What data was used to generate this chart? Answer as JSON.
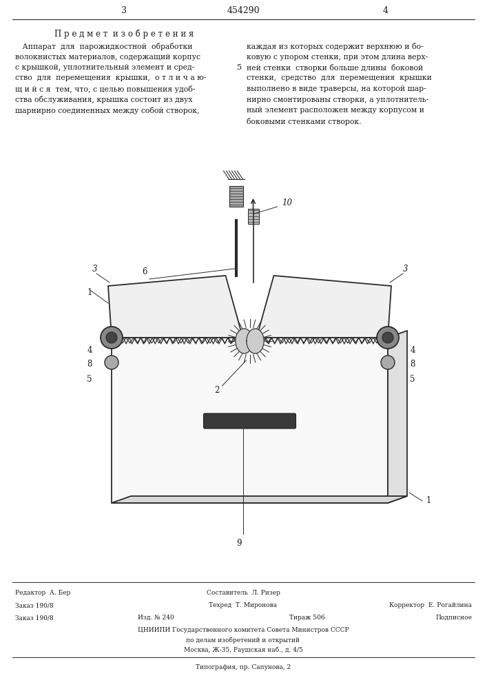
{
  "patent_number": "454290",
  "page_left": "3",
  "page_right": "4",
  "section_title": "П р е д м е т  и з о б р е т е н и я",
  "left_col_text": [
    "   Аппарат  для  парожидкостной  обработки",
    "волокнистых материалов, содержащий корпус",
    "с крышкой, уплотнительный элемент и сред-",
    "ство  для  перемещения  крышки,  о т л и ч а ю-",
    "щ и й с я  тем, что, с целью повышения удоб-",
    "ства обслуживания, крышка состоит из двух",
    "шарнирно соединенных между собой створок,"
  ],
  "right_col_text": [
    "каждая из которых содержит верхнюю и бо-",
    "ковую с упором стенки, при этом длина верх-",
    "ней стенки  створки больше длины  боковой",
    "стенки,  средство  для  перемещения  крышки",
    "выполнено в виде траверсы, на которой шар-",
    "нирно смонтированы створки, а уплотнитель-",
    "ный элемент расположен между корпусом и",
    "боковыми стенками створок."
  ],
  "col5_label": "5",
  "diagram_labels": {
    "1_left": "1",
    "1_right": "1",
    "2": "2",
    "3_left": "3",
    "3_right": "3",
    "4_left": "4",
    "4_right": "4",
    "5_left": "5",
    "5_right": "5",
    "6": "6",
    "8_left": "8",
    "8_right": "8",
    "9": "9",
    "10": "10"
  },
  "footer_editor": "Редактор  А. Бер",
  "footer_composer": "Составитель  Л. Ризер",
  "footer_order": "Заказ 190/8",
  "footer_tech": "Техред  Т. Миронова",
  "footer_corrector": "Корректор  Е. Рогайлина",
  "footer_izd": "Изд. № 240",
  "footer_tirazh": "Тираж 506",
  "footer_podpisnoe": "Подписное",
  "footer_org1": "ЦНИИПИ Государственного комитета Совета Министров СССР",
  "footer_org2": "по делам изобретений и открытий",
  "footer_org3": "Москва, Ж-35, Раушская наб., д. 4/5",
  "footer_typog": "Типография, пр. Сапунова, 2",
  "bg_color": "#ffffff",
  "text_color": "#1a1a1a",
  "line_color": "#2a2a2a"
}
